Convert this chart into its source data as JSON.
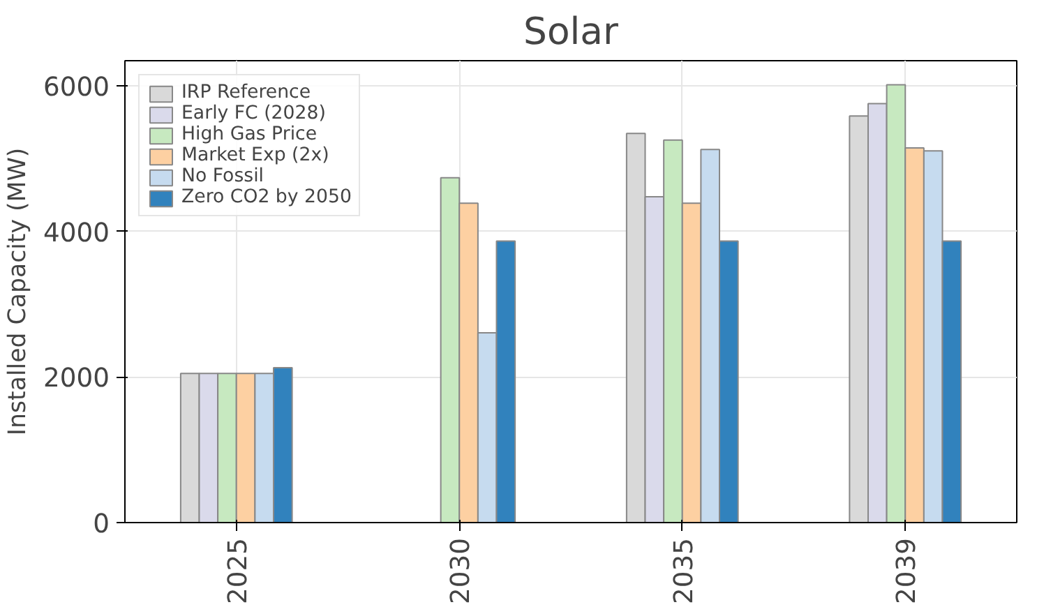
{
  "chart_data": {
    "type": "bar",
    "title": "Solar",
    "ylabel": "Installed Capacity (MW)",
    "categories": [
      "2025",
      "2030",
      "2035",
      "2039"
    ],
    "series": [
      {
        "name": "IRP Reference",
        "color": "#d9d9d9",
        "values": [
          2050,
          null,
          5350,
          5590
        ]
      },
      {
        "name": "Early FC (2028)",
        "color": "#dadaeb",
        "values": [
          2050,
          null,
          4480,
          5760
        ]
      },
      {
        "name": "High Gas Price",
        "color": "#c7e9c0",
        "values": [
          2050,
          4740,
          5260,
          6020
        ]
      },
      {
        "name": "Market Exp (2x)",
        "color": "#fdd0a2",
        "values": [
          2050,
          4390,
          4390,
          5150
        ]
      },
      {
        "name": "No Fossil",
        "color": "#c6dbef",
        "values": [
          2050,
          2610,
          5130,
          5110
        ]
      },
      {
        "name": "Zero CO2 by 2050",
        "color": "#3182bd",
        "values": [
          2130,
          3870,
          3870,
          3870
        ]
      }
    ],
    "ylim": [
      0,
      6350
    ],
    "yticks": [
      0,
      2000,
      4000,
      6000
    ],
    "grid": true,
    "legend": "top left"
  }
}
